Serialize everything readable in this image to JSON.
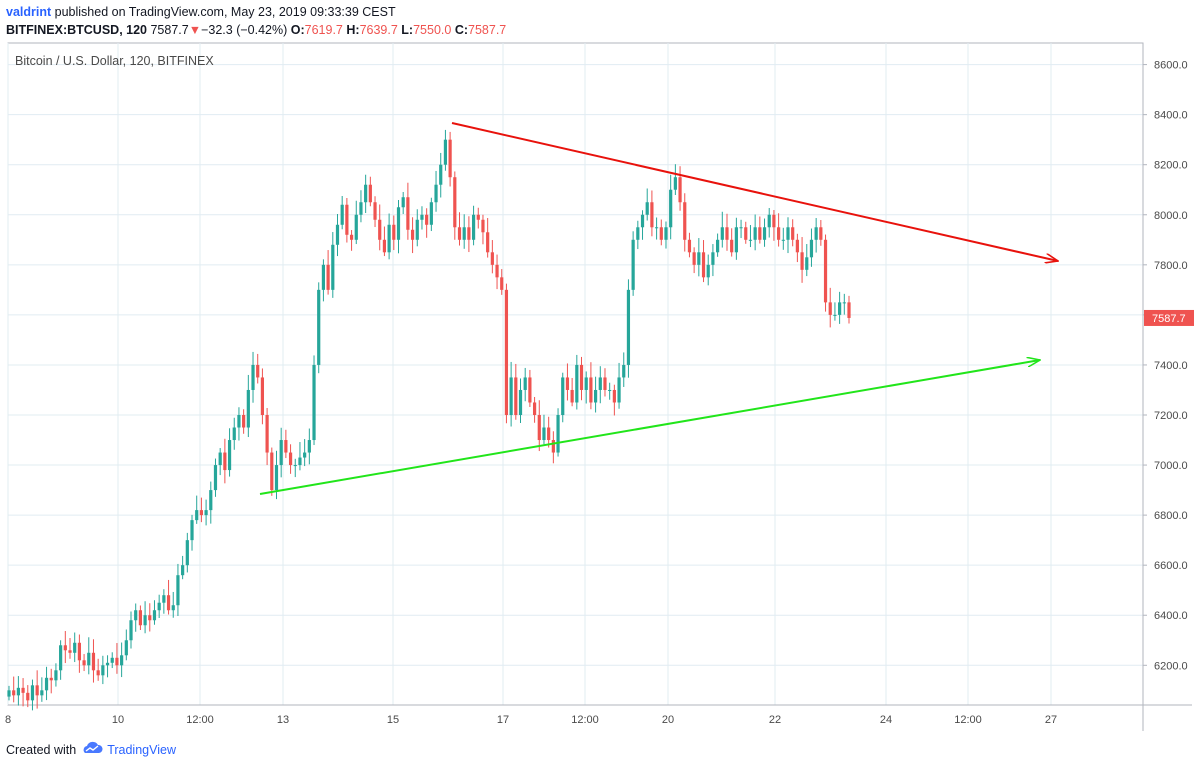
{
  "header": {
    "author": "valdrint",
    "published_text": "published on TradingView.com, May 23, 2019 09:33:39 CEST",
    "symbol": "BITFINEX:BTCUSD, 120",
    "last": "7587.7",
    "down_arrow": "▼",
    "change": "−32.3 (−0.42%)",
    "o_label": "O:",
    "o_value": "7619.7",
    "h_label": "H:",
    "h_value": "7639.7",
    "l_label": "L:",
    "l_value": "7550.0",
    "c_label": "C:",
    "c_value": "7587.7"
  },
  "footer": {
    "created_with": "Created with",
    "brand": "TradingView",
    "logo_icon": "tradingview-cloud-icon"
  },
  "colors": {
    "up": "#26a69a",
    "down": "#ef5350",
    "resistance": "#e8120c",
    "support": "#21e51a",
    "grid": "#e1ecf2",
    "price_tag": "#ef5350"
  },
  "chart_data": {
    "type": "candlestick",
    "title": "Bitcoin / U.S. Dollar, 120, BITFINEX",
    "y_ticks": [
      "6200.0",
      "6400.0",
      "6600.0",
      "6800.0",
      "7000.0",
      "7200.0",
      "7400.0",
      "7600.0",
      "7800.0",
      "8000.0",
      "8200.0",
      "8400.0",
      "8600.0"
    ],
    "x_ticks": [
      "8",
      "10",
      "12:00",
      "13",
      "15",
      "17",
      "12:00",
      "20",
      "22",
      "24",
      "12:00",
      "27"
    ],
    "ylim": [
      6030,
      8640
    ],
    "last_price_label": "7587.7",
    "last_price": 7587.7,
    "grid": true,
    "closes": [
      6100,
      6080,
      6110,
      6090,
      6060,
      6120,
      6080,
      6100,
      6150,
      6140,
      6180,
      6280,
      6260,
      6250,
      6290,
      6220,
      6200,
      6250,
      6180,
      6160,
      6200,
      6210,
      6230,
      6200,
      6240,
      6300,
      6380,
      6420,
      6360,
      6400,
      6380,
      6420,
      6450,
      6480,
      6420,
      6440,
      6560,
      6600,
      6700,
      6780,
      6820,
      6800,
      6820,
      6900,
      7000,
      7050,
      6980,
      7100,
      7150,
      7200,
      7150,
      7300,
      7400,
      7350,
      7200,
      7050,
      6900,
      7000,
      7100,
      7050,
      7000,
      7000,
      7030,
      7050,
      7100,
      7400,
      7700,
      7800,
      7700,
      7880,
      7960,
      8040,
      7920,
      7900,
      8000,
      8050,
      8120,
      8050,
      7980,
      7900,
      7850,
      7960,
      7900,
      8030,
      8070,
      7940,
      7900,
      7980,
      8000,
      7960,
      8050,
      8120,
      8200,
      8300,
      8150,
      7950,
      7900,
      7950,
      7900,
      8000,
      7980,
      7930,
      7850,
      7800,
      7750,
      7700,
      7200,
      7350,
      7200,
      7300,
      7350,
      7250,
      7200,
      7100,
      7150,
      7100,
      7050,
      7200,
      7350,
      7300,
      7250,
      7400,
      7300,
      7350,
      7250,
      7300,
      7350,
      7300,
      7300,
      7250,
      7350,
      7400,
      7700,
      7900,
      7950,
      8000,
      8050,
      7950,
      7950,
      7900,
      7950,
      8100,
      8150,
      8050,
      7900,
      7850,
      7800,
      7850,
      7750,
      7800,
      7850,
      7900,
      7950,
      7900,
      7850,
      7950,
      7950,
      7900,
      7900,
      7950,
      7900,
      7950,
      8000,
      7950,
      7900,
      7900,
      7950,
      7900,
      7850,
      7780,
      7830,
      7900,
      7950,
      7900,
      7650,
      7600,
      7600,
      7650,
      7650,
      7587.7
    ],
    "resistance_line": {
      "from": {
        "x": "16 May",
        "y": 8370
      },
      "to": {
        "x": "27 May",
        "y": 7810
      }
    },
    "support_line": {
      "from": {
        "x": "12 May 15:00",
        "y": 6880
      },
      "to": {
        "x": "26 May 12:00",
        "y": 7420
      }
    }
  }
}
